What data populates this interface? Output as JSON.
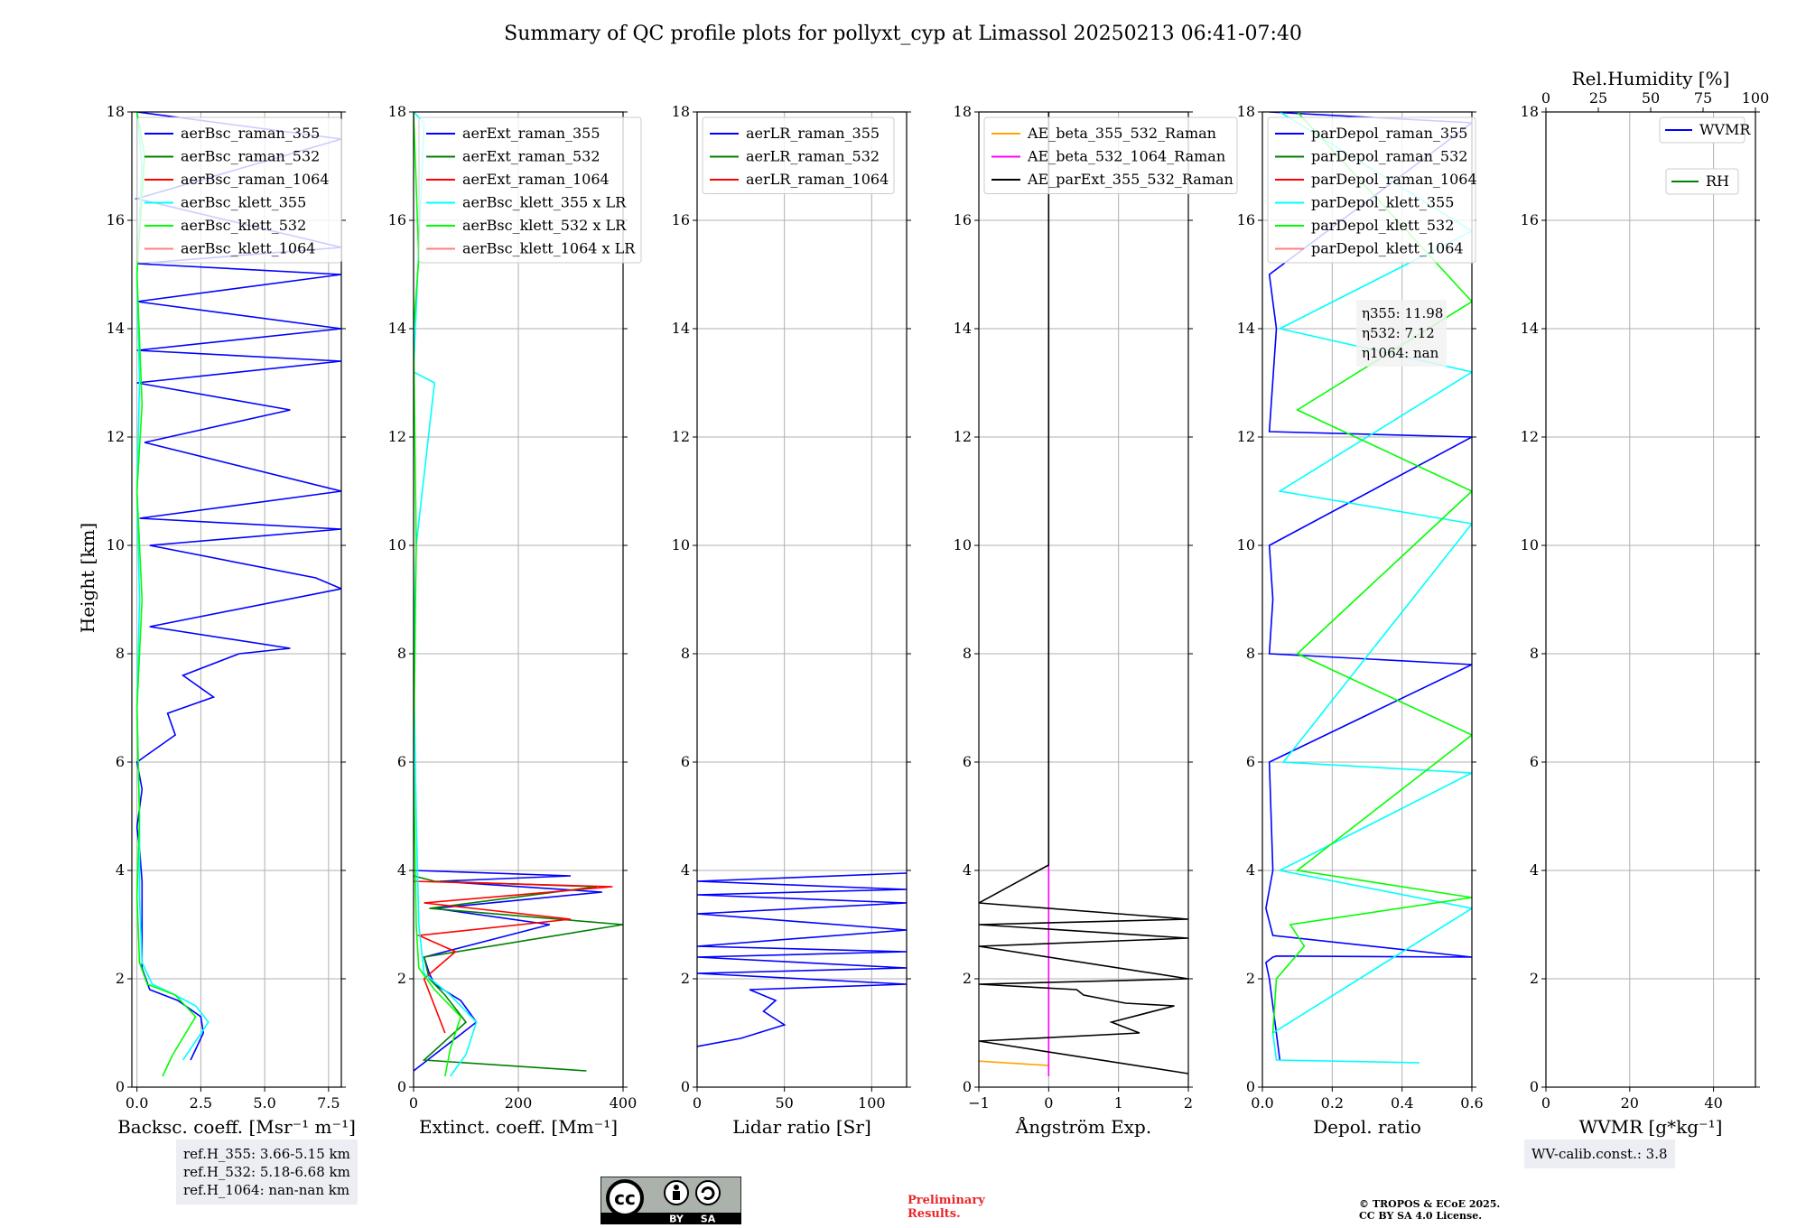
{
  "title": "Summary of QC profile plots for pollyxt_cyp at Limassol 20250213 06:41-07:40",
  "ylabel": "Height [km]",
  "chart_data": [
    {
      "id": "backscatter",
      "type": "line",
      "xlabel": "Backsc. coeff. [Msr⁻¹ m⁻¹]",
      "xlim": [
        -0.2,
        8.0
      ],
      "xticks": [
        0.0,
        2.5,
        5.0,
        7.5
      ],
      "xtick_labels": [
        "0.0",
        "2.5",
        "5.0",
        "7.5"
      ],
      "ylim": [
        0,
        18
      ],
      "yticks": [
        0,
        2,
        4,
        6,
        8,
        10,
        12,
        14,
        16,
        18
      ],
      "legend": [
        "aerBsc_raman_355",
        "aerBsc_raman_532",
        "aerBsc_raman_1064",
        "aerBsc_klett_355",
        "aerBsc_klett_532",
        "aerBsc_klett_1064"
      ],
      "legend_colors": [
        "#0000ff",
        "#008000",
        "#ff0000",
        "#00ffff",
        "#00ff00",
        "#ff8080"
      ],
      "series": [
        {
          "name": "aerBsc_raman_355",
          "color": "#0000ff",
          "x": [
            2.1,
            2.6,
            2.5,
            1.6,
            0.5,
            0.2,
            0.2,
            0.2,
            0.1,
            0.0,
            0.2,
            0.0,
            0.3,
            1.5,
            1.2,
            3.0,
            1.8,
            4.0,
            6.0,
            0.5,
            8.0,
            7.0,
            0.5,
            8.0,
            0.1,
            8.0,
            0.3,
            6.0,
            0.0,
            8.0,
            0.0,
            8.0,
            0.0,
            8.0,
            0.0,
            8.0,
            0.0,
            8.0,
            0.0
          ],
          "y": [
            0.5,
            1.0,
            1.3,
            1.6,
            1.8,
            2.2,
            3.0,
            3.8,
            4.4,
            4.8,
            5.5,
            6.0,
            6.1,
            6.5,
            6.9,
            7.2,
            7.6,
            8.0,
            8.1,
            8.5,
            9.2,
            9.4,
            10.0,
            10.3,
            10.5,
            11.0,
            11.9,
            12.5,
            13.0,
            13.4,
            13.6,
            14.0,
            14.5,
            15.0,
            15.2,
            15.5,
            16.4,
            17.5,
            18.0
          ]
        },
        {
          "name": "aerBsc_raman_532",
          "color": "#008000",
          "x": [],
          "y": []
        },
        {
          "name": "aerBsc_raman_1064",
          "color": "#ff0000",
          "x": [],
          "y": []
        },
        {
          "name": "aerBsc_klett_355",
          "color": "#00ffff",
          "x": [
            1.8,
            2.8,
            2.3,
            1.5,
            0.6,
            0.2,
            0.1,
            0.1,
            0.0,
            0.1,
            0.0,
            0.1,
            0.0,
            0.2,
            0.0
          ],
          "y": [
            0.5,
            1.2,
            1.5,
            1.7,
            1.9,
            2.3,
            3.5,
            5.0,
            7.0,
            9.0,
            11.0,
            13.0,
            15.0,
            17.0,
            18.0
          ]
        },
        {
          "name": "aerBsc_klett_532",
          "color": "#00ff00",
          "x": [
            1.0,
            1.4,
            2.3,
            1.5,
            0.4,
            0.1,
            0.0,
            0.1,
            0.0,
            0.2,
            0.0,
            0.2,
            0.0,
            0.3,
            0.0
          ],
          "y": [
            0.2,
            0.6,
            1.3,
            1.7,
            1.9,
            2.3,
            3.5,
            5.0,
            7.0,
            9.0,
            11.0,
            12.6,
            15.0,
            17.2,
            18.0
          ]
        },
        {
          "name": "aerBsc_klett_1064",
          "color": "#ff8080",
          "x": [],
          "y": []
        }
      ],
      "info_box": [
        "ref.H_355: 3.66-5.15 km",
        "ref.H_532: 5.18-6.68 km",
        "ref.H_1064: nan-nan km"
      ]
    },
    {
      "id": "extinction",
      "type": "line",
      "xlabel": "Extinct. coeff. [Mm⁻¹]",
      "xlim": [
        0,
        400
      ],
      "xticks": [
        0,
        200,
        400
      ],
      "xtick_labels": [
        "0",
        "200",
        "400"
      ],
      "ylim": [
        0,
        18
      ],
      "yticks": [
        0,
        2,
        4,
        6,
        8,
        10,
        12,
        14,
        16,
        18
      ],
      "legend": [
        "aerExt_raman_355",
        "aerExt_raman_532",
        "aerExt_raman_1064",
        "aerBsc_klett_355 x LR",
        "aerBsc_klett_532 x LR",
        "aerBsc_klett_1064 x LR"
      ],
      "legend_colors": [
        "#0000ff",
        "#008000",
        "#ff0000",
        "#00ffff",
        "#00ff00",
        "#ff8080"
      ],
      "series": [
        {
          "name": "aerExt_raman_355",
          "color": "#0000ff",
          "x": [
            0,
            120,
            90,
            40,
            30,
            20,
            260,
            40,
            360,
            50,
            300,
            0
          ],
          "y": [
            0.3,
            1.2,
            1.6,
            1.9,
            2.1,
            2.4,
            3.0,
            3.3,
            3.6,
            3.8,
            3.9,
            4.0
          ]
        },
        {
          "name": "aerExt_raman_532",
          "color": "#008000",
          "x": [
            330,
            20,
            100,
            60,
            30,
            20,
            400,
            30,
            350,
            40,
            0
          ],
          "y": [
            0.3,
            0.5,
            1.2,
            1.7,
            2.0,
            2.4,
            3.0,
            3.3,
            3.7,
            3.8,
            3.9
          ]
        },
        {
          "name": "aerExt_raman_1064",
          "color": "#ff0000",
          "x": [
            60,
            40,
            20,
            80,
            10,
            300,
            20,
            380,
            0
          ],
          "y": [
            1.0,
            1.5,
            2.0,
            2.5,
            2.8,
            3.1,
            3.4,
            3.7,
            3.8
          ]
        },
        {
          "name": "aerBsc_klett_355 x LR",
          "color": "#00ffff",
          "x": [
            70,
            100,
            120,
            70,
            20,
            10,
            5,
            0,
            5,
            40,
            0,
            20,
            0
          ],
          "y": [
            0.2,
            0.6,
            1.2,
            1.7,
            2.1,
            3.0,
            5.0,
            8.0,
            10.0,
            13.0,
            13.2,
            17.8,
            18.0
          ]
        },
        {
          "name": "aerBsc_klett_532 x LR",
          "color": "#00ff00",
          "x": [
            60,
            70,
            90,
            40,
            10,
            5,
            0,
            5,
            0,
            10,
            0
          ],
          "y": [
            0.2,
            0.7,
            1.3,
            1.8,
            2.2,
            3.0,
            6.0,
            10.0,
            14.0,
            15.3,
            18.0
          ]
        },
        {
          "name": "aerBsc_klett_1064 x LR",
          "color": "#ff8080",
          "x": [],
          "y": []
        }
      ]
    },
    {
      "id": "lidar_ratio",
      "type": "line",
      "xlabel": "Lidar ratio [Sr]",
      "xlim": [
        0,
        120
      ],
      "xticks": [
        0,
        50,
        100
      ],
      "xtick_labels": [
        "0",
        "50",
        "100"
      ],
      "ylim": [
        0,
        18
      ],
      "yticks": [
        0,
        2,
        4,
        6,
        8,
        10,
        12,
        14,
        16,
        18
      ],
      "legend": [
        "aerLR_raman_355",
        "aerLR_raman_532",
        "aerLR_raman_1064"
      ],
      "legend_colors": [
        "#0000ff",
        "#008000",
        "#ff0000"
      ],
      "series": [
        {
          "name": "aerLR_raman_355",
          "color": "#0000ff",
          "x": [
            0,
            25,
            40,
            50,
            38,
            45,
            30,
            120,
            0,
            120,
            0,
            120,
            0,
            120,
            0,
            120,
            0,
            120,
            0,
            120
          ],
          "y": [
            0.75,
            0.9,
            1.05,
            1.15,
            1.4,
            1.6,
            1.8,
            1.9,
            2.1,
            2.2,
            2.4,
            2.5,
            2.6,
            2.9,
            3.2,
            3.4,
            3.55,
            3.65,
            3.8,
            3.95
          ]
        },
        {
          "name": "aerLR_raman_532",
          "color": "#008000",
          "x": [],
          "y": []
        },
        {
          "name": "aerLR_raman_1064",
          "color": "#ff0000",
          "x": [],
          "y": []
        }
      ]
    },
    {
      "id": "angstrom",
      "type": "line",
      "xlabel": "Ångström Exp.",
      "xlim": [
        -1,
        2
      ],
      "xticks": [
        -1,
        0,
        1,
        2
      ],
      "xtick_labels": [
        "−1",
        "0",
        "1",
        "2"
      ],
      "ylim": [
        0,
        18
      ],
      "yticks": [
        0,
        2,
        4,
        6,
        8,
        10,
        12,
        14,
        16,
        18
      ],
      "legend": [
        "AE_beta_355_532_Raman",
        "AE_beta_532_1064_Raman",
        "AE_parExt_355_532_Raman"
      ],
      "legend_colors": [
        "#ffa500",
        "#ff00ff",
        "#000000"
      ],
      "series": [
        {
          "name": "AE_beta_355_532_Raman",
          "color": "#ffa500",
          "x": [
            -1,
            0,
            0
          ],
          "y": [
            0.48,
            0.4,
            4.0
          ]
        },
        {
          "name": "AE_beta_532_1064_Raman",
          "color": "#ff00ff",
          "x": [
            0,
            0
          ],
          "y": [
            0.2,
            4.1
          ]
        },
        {
          "name": "AE_parExt_355_532_Raman",
          "color": "#000000",
          "x": [
            2,
            -1,
            1.3,
            0.9,
            1.8,
            1.1,
            0.5,
            0.4,
            -1,
            2,
            -1,
            2,
            -1,
            2,
            -1,
            0,
            0
          ],
          "y": [
            0.25,
            0.85,
            1.0,
            1.2,
            1.5,
            1.55,
            1.7,
            1.8,
            1.9,
            2.0,
            2.6,
            2.75,
            3.0,
            3.1,
            3.4,
            4.1,
            18.0
          ]
        }
      ]
    },
    {
      "id": "depolarization",
      "type": "line",
      "xlabel": "Depol. ratio",
      "xlim": [
        0.0,
        0.6
      ],
      "xticks": [
        0.0,
        0.2,
        0.4,
        0.6
      ],
      "xtick_labels": [
        "0.0",
        "0.2",
        "0.4",
        "0.6"
      ],
      "ylim": [
        0,
        18
      ],
      "yticks": [
        0,
        2,
        4,
        6,
        8,
        10,
        12,
        14,
        16,
        18
      ],
      "legend": [
        "parDepol_raman_355",
        "parDepol_raman_532",
        "parDepol_raman_1064",
        "parDepol_klett_355",
        "parDepol_klett_532",
        "parDepol_klett_1064"
      ],
      "legend_colors": [
        "#0000ff",
        "#008000",
        "#ff0000",
        "#00ffff",
        "#00ff00",
        "#ff8080"
      ],
      "series": [
        {
          "name": "parDepol_raman_355",
          "color": "#0000ff",
          "x": [
            0.05,
            0.03,
            0.02,
            0.01,
            0.03,
            0.04,
            0.6,
            0.03,
            0.01,
            0.03,
            0.02,
            0.6,
            0.02,
            0.03,
            0.02,
            0.6,
            0.02,
            0.04,
            0.02,
            0.6,
            0.02
          ],
          "y": [
            0.5,
            1.5,
            2.0,
            2.3,
            2.4,
            2.42,
            2.4,
            2.8,
            3.3,
            4.0,
            6.0,
            7.8,
            8.0,
            9.0,
            10.0,
            12.0,
            12.1,
            14.0,
            15.0,
            17.8,
            18.0
          ]
        },
        {
          "name": "parDepol_klett_355",
          "color": "#00ffff",
          "x": [
            0.45,
            0.04,
            0.03,
            0.6,
            0.05,
            0.6,
            0.06,
            0.6,
            0.05,
            0.6,
            0.05,
            0.6,
            0.05
          ],
          "y": [
            0.45,
            0.5,
            1.0,
            3.3,
            4.0,
            5.8,
            6.0,
            10.4,
            11.0,
            13.2,
            14.0,
            15.8,
            18.0
          ]
        },
        {
          "name": "parDepol_klett_532",
          "color": "#00ff00",
          "x": [
            0.03,
            0.04,
            0.12,
            0.08,
            0.6,
            0.1,
            0.6,
            0.1,
            0.6,
            0.1,
            0.6,
            0.1
          ],
          "y": [
            1.0,
            2.0,
            2.6,
            3.0,
            3.5,
            4.0,
            6.5,
            8.0,
            11.0,
            12.5,
            14.5,
            18.0
          ]
        }
      ],
      "annotation": [
        "η355: 11.98",
        "η532: 7.12",
        "η1064: nan"
      ]
    },
    {
      "id": "wvmr",
      "type": "line",
      "xlabel": "WVMR [g*kg⁻¹]",
      "xlim": [
        0,
        50
      ],
      "xticks": [
        0,
        20,
        40
      ],
      "xtick_labels": [
        "0",
        "20",
        "40"
      ],
      "top_xlabel": "Rel.Humidity [%]",
      "top_xlim": [
        0,
        100
      ],
      "top_xticks": [
        0,
        25,
        50,
        75,
        100
      ],
      "top_xtick_labels": [
        "0",
        "25",
        "50",
        "75",
        "100"
      ],
      "ylim": [
        0,
        18
      ],
      "yticks": [
        0,
        2,
        4,
        6,
        8,
        10,
        12,
        14,
        16,
        18
      ],
      "legend": [
        "WVMR",
        "RH"
      ],
      "legend_colors": [
        "#0000ff",
        "#008000"
      ],
      "series": [],
      "info_box": [
        "WV-calib.const.: 3.8"
      ]
    }
  ],
  "footer": {
    "preliminary": [
      "Preliminary",
      "Results."
    ],
    "copyright": [
      "© TROPOS & ECoE 2025.",
      "CC BY SA 4.0 License."
    ],
    "license_badge": [
      "cc",
      "BY",
      "SA"
    ]
  }
}
